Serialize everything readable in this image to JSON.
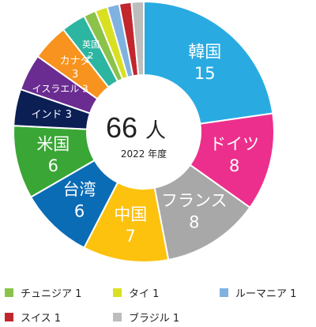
{
  "chart_data": {
    "type": "pie",
    "style": "donut",
    "total": "66",
    "total_unit": "人",
    "center_caption": "2022 年度",
    "series": [
      {
        "label": "韓国",
        "value": 15,
        "color": "#29abe2"
      },
      {
        "label": "ドイツ",
        "value": 8,
        "color": "#ec2f8c"
      },
      {
        "label": "フランス",
        "value": 8,
        "color": "#a8a8a8"
      },
      {
        "label": "中国",
        "value": 7,
        "color": "#fcc20e"
      },
      {
        "label": "台湾",
        "value": 6,
        "color": "#0b6cb6"
      },
      {
        "label": "米国",
        "value": 6,
        "color": "#3aa635"
      },
      {
        "label": "インド",
        "value": 3,
        "color": "#0b1f55"
      },
      {
        "label": "イスラエル",
        "value": 3,
        "color": "#6a2c91"
      },
      {
        "label": "カナダ",
        "value": 3,
        "color": "#f7931e"
      },
      {
        "label": "英国",
        "value": 2,
        "color": "#2cb5a0"
      },
      {
        "label": "チュニジア",
        "value": 1,
        "color": "#8bc34a"
      },
      {
        "label": "タイ",
        "value": 1,
        "color": "#d9e021"
      },
      {
        "label": "ルーマニア",
        "value": 1,
        "color": "#7fb2e0"
      },
      {
        "label": "スイス",
        "value": 1,
        "color": "#c1272d"
      },
      {
        "label": "ブラジル",
        "value": 1,
        "color": "#bdbdbd"
      }
    ],
    "legend": [
      {
        "text": "チュニジア 1",
        "color": "#8bc34a"
      },
      {
        "text": "タイ 1",
        "color": "#d9e021"
      },
      {
        "text": "ルーマニア 1",
        "color": "#7fb2e0"
      },
      {
        "text": "スイス 1",
        "color": "#c1272d"
      },
      {
        "text": "ブラジル 1",
        "color": "#bdbdbd"
      }
    ]
  }
}
